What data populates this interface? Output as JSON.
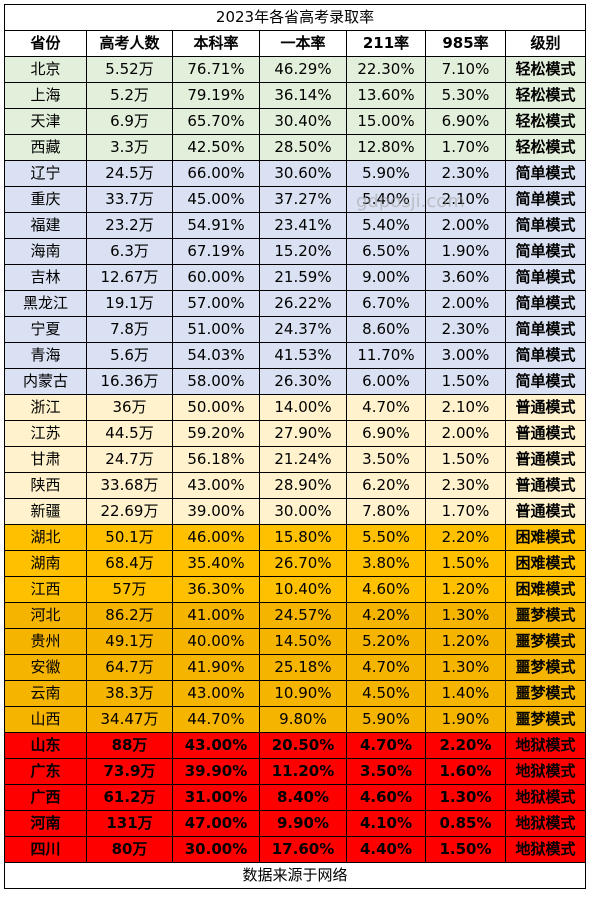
{
  "title": "2023年各省高考录取率",
  "columns": [
    "省份",
    "高考人数",
    "本科率",
    "一本率",
    "211率",
    "985率",
    "级别"
  ],
  "level_colors": {
    "轻松模式": "#e2efda",
    "简单模式": "#d9e1f2",
    "普通模式": "#fff2cc",
    "困难模式": "#ffc000",
    "噩梦模式": "#f5b400",
    "地狱模式": "#ff0000"
  },
  "rows": [
    [
      "北京",
      "5.52万",
      "76.71%",
      "46.29%",
      "22.30%",
      "7.10%",
      "轻松模式"
    ],
    [
      "上海",
      "5.2万",
      "79.19%",
      "36.14%",
      "13.60%",
      "5.30%",
      "轻松模式"
    ],
    [
      "天津",
      "6.9万",
      "65.70%",
      "30.40%",
      "15.00%",
      "6.90%",
      "轻松模式"
    ],
    [
      "西藏",
      "3.3万",
      "42.50%",
      "28.50%",
      "12.80%",
      "1.70%",
      "轻松模式"
    ],
    [
      "辽宁",
      "24.5万",
      "66.00%",
      "30.60%",
      "5.90%",
      "2.30%",
      "简单模式"
    ],
    [
      "重庆",
      "33.7万",
      "45.00%",
      "37.27%",
      "5.40%",
      "2.10%",
      "简单模式"
    ],
    [
      "福建",
      "23.2万",
      "54.91%",
      "23.41%",
      "5.40%",
      "2.00%",
      "简单模式"
    ],
    [
      "海南",
      "6.3万",
      "67.19%",
      "15.20%",
      "6.50%",
      "1.90%",
      "简单模式"
    ],
    [
      "吉林",
      "12.67万",
      "60.00%",
      "21.59%",
      "9.00%",
      "3.60%",
      "简单模式"
    ],
    [
      "黑龙江",
      "19.1万",
      "57.00%",
      "26.22%",
      "6.70%",
      "2.00%",
      "简单模式"
    ],
    [
      "宁夏",
      "7.8万",
      "51.00%",
      "24.37%",
      "8.60%",
      "2.30%",
      "简单模式"
    ],
    [
      "青海",
      "5.6万",
      "54.03%",
      "41.53%",
      "11.70%",
      "3.00%",
      "简单模式"
    ],
    [
      "内蒙古",
      "16.36万",
      "58.00%",
      "26.30%",
      "6.00%",
      "1.50%",
      "简单模式"
    ],
    [
      "浙江",
      "36万",
      "50.00%",
      "14.00%",
      "4.70%",
      "2.10%",
      "普通模式"
    ],
    [
      "江苏",
      "44.5万",
      "59.20%",
      "27.90%",
      "6.90%",
      "2.00%",
      "普通模式"
    ],
    [
      "甘肃",
      "24.7万",
      "56.18%",
      "21.24%",
      "3.50%",
      "1.50%",
      "普通模式"
    ],
    [
      "陕西",
      "33.68万",
      "43.00%",
      "28.90%",
      "6.20%",
      "2.30%",
      "普通模式"
    ],
    [
      "新疆",
      "22.69万",
      "39.00%",
      "30.00%",
      "7.80%",
      "1.70%",
      "普通模式"
    ],
    [
      "湖北",
      "50.1万",
      "46.00%",
      "15.80%",
      "5.50%",
      "2.20%",
      "困难模式"
    ],
    [
      "湖南",
      "68.4万",
      "35.40%",
      "26.70%",
      "3.80%",
      "1.50%",
      "困难模式"
    ],
    [
      "江西",
      "57万",
      "36.30%",
      "10.40%",
      "4.60%",
      "1.20%",
      "困难模式"
    ],
    [
      "河北",
      "86.2万",
      "41.00%",
      "24.57%",
      "4.20%",
      "1.30%",
      "噩梦模式"
    ],
    [
      "贵州",
      "49.1万",
      "40.00%",
      "14.50%",
      "5.20%",
      "1.20%",
      "噩梦模式"
    ],
    [
      "安徽",
      "64.7万",
      "41.90%",
      "25.18%",
      "4.70%",
      "1.30%",
      "噩梦模式"
    ],
    [
      "云南",
      "38.3万",
      "43.00%",
      "10.90%",
      "4.50%",
      "1.40%",
      "噩梦模式"
    ],
    [
      "山西",
      "34.47万",
      "44.70%",
      "9.80%",
      "5.90%",
      "1.90%",
      "噩梦模式"
    ],
    [
      "山东",
      "88万",
      "43.00%",
      "20.50%",
      "4.70%",
      "2.20%",
      "地狱模式"
    ],
    [
      "广东",
      "73.9万",
      "39.90%",
      "11.20%",
      "3.50%",
      "1.60%",
      "地狱模式"
    ],
    [
      "广西",
      "61.2万",
      "31.00%",
      "8.40%",
      "4.60%",
      "1.30%",
      "地狱模式"
    ],
    [
      "河南",
      "131万",
      "47.00%",
      "9.90%",
      "4.10%",
      "0.85%",
      "地狱模式"
    ],
    [
      "四川",
      "80万",
      "30.00%",
      "17.60%",
      "4.40%",
      "1.50%",
      "地狱模式"
    ]
  ],
  "footer": "数据来源于网络",
  "watermark": "gdposji.com"
}
